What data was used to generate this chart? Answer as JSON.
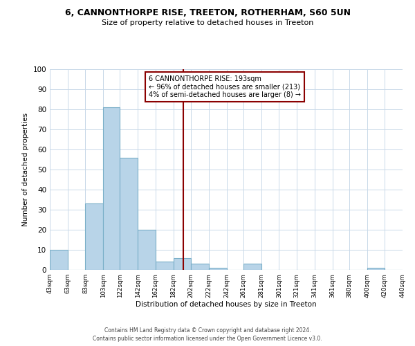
{
  "title": "6, CANNONTHORPE RISE, TREETON, ROTHERHAM, S60 5UN",
  "subtitle": "Size of property relative to detached houses in Treeton",
  "xlabel": "Distribution of detached houses by size in Treeton",
  "ylabel": "Number of detached properties",
  "bar_color": "#b8d4e8",
  "bar_edge_color": "#7aafc8",
  "bin_edges": [
    43,
    63,
    83,
    103,
    122,
    142,
    162,
    182,
    202,
    222,
    242,
    261,
    281,
    301,
    321,
    341,
    361,
    380,
    400,
    420,
    440
  ],
  "bin_labels": [
    "43sqm",
    "63sqm",
    "83sqm",
    "103sqm",
    "122sqm",
    "142sqm",
    "162sqm",
    "182sqm",
    "202sqm",
    "222sqm",
    "242sqm",
    "261sqm",
    "281sqm",
    "301sqm",
    "321sqm",
    "341sqm",
    "361sqm",
    "380sqm",
    "400sqm",
    "420sqm",
    "440sqm"
  ],
  "bar_heights": [
    10,
    0,
    33,
    81,
    56,
    20,
    4,
    6,
    3,
    1,
    0,
    3,
    0,
    0,
    0,
    0,
    0,
    0,
    1,
    0
  ],
  "vline_x": 193,
  "vline_color": "#8b0000",
  "annotation_text": "6 CANNONTHORPE RISE: 193sqm\n← 96% of detached houses are smaller (213)\n4% of semi-detached houses are larger (8) →",
  "annotation_box_color": "#8b0000",
  "ylim": [
    0,
    100
  ],
  "yticks": [
    0,
    10,
    20,
    30,
    40,
    50,
    60,
    70,
    80,
    90,
    100
  ],
  "grid_color": "#c8d8e8",
  "background_color": "#ffffff",
  "footer_line1": "Contains HM Land Registry data © Crown copyright and database right 2024.",
  "footer_line2": "Contains public sector information licensed under the Open Government Licence v3.0."
}
